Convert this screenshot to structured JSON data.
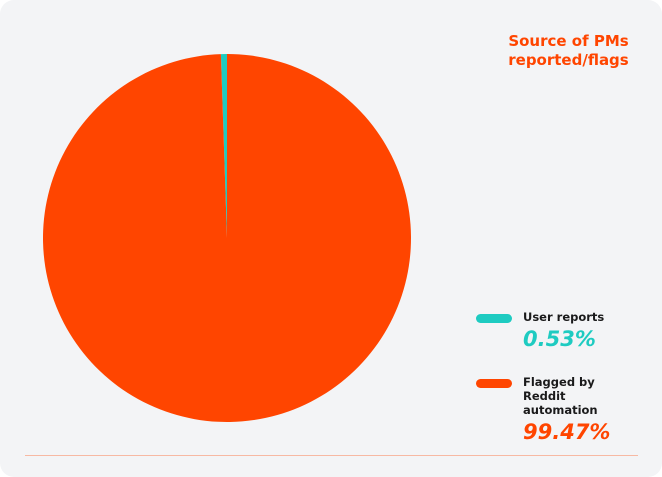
{
  "chart_data": {
    "type": "pie",
    "title": "Source of PMs reported/flags",
    "categories": [
      "User reports",
      "Flagged by Reddit automation"
    ],
    "values": [
      0.53,
      99.47
    ],
    "value_labels": [
      "0.53%",
      "99.47%"
    ],
    "colors": [
      "#1ecbc1",
      "#ff4500"
    ]
  }
}
